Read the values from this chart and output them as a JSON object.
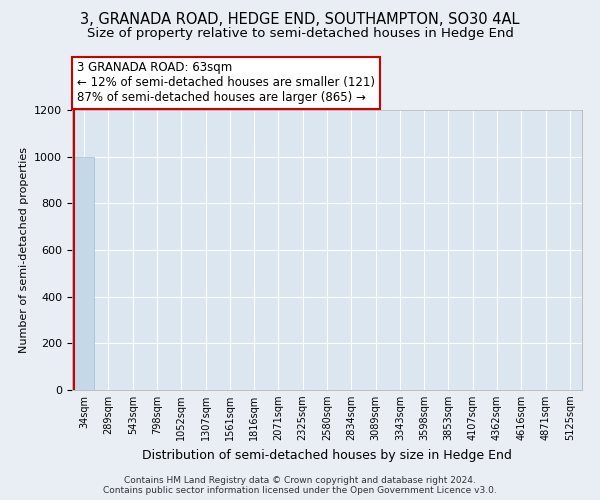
{
  "title": "3, GRANADA ROAD, HEDGE END, SOUTHAMPTON, SO30 4AL",
  "subtitle": "Size of property relative to semi-detached houses in Hedge End",
  "xlabel": "Distribution of semi-detached houses by size in Hedge End",
  "ylabel": "Number of semi-detached properties",
  "annotation_title": "3 GRANADA ROAD: 63sqm",
  "annotation_line1": "← 12% of semi-detached houses are smaller (121)",
  "annotation_line2": "87% of semi-detached houses are larger (865) →",
  "footer_line1": "Contains HM Land Registry data © Crown copyright and database right 2024.",
  "footer_line2": "Contains public sector information licensed under the Open Government Licence v3.0.",
  "categories": [
    "34sqm",
    "289sqm",
    "543sqm",
    "798sqm",
    "1052sqm",
    "1307sqm",
    "1561sqm",
    "1816sqm",
    "2071sqm",
    "2325sqm",
    "2580sqm",
    "2834sqm",
    "3089sqm",
    "3343sqm",
    "3598sqm",
    "3853sqm",
    "4107sqm",
    "4362sqm",
    "4616sqm",
    "4871sqm",
    "5125sqm"
  ],
  "values": [
    1000,
    0,
    0,
    0,
    0,
    0,
    0,
    0,
    0,
    0,
    0,
    0,
    0,
    0,
    0,
    0,
    0,
    0,
    0,
    0,
    0
  ],
  "bar_color": "#c5d8e8",
  "bar_edge_color": "#a0bcd0",
  "annotation_box_color": "#ffffff",
  "annotation_border_color": "#cc0000",
  "property_line_color": "#cc0000",
  "ylim": [
    0,
    1200
  ],
  "yticks": [
    0,
    200,
    400,
    600,
    800,
    1000,
    1200
  ],
  "background_color": "#e8eef4",
  "plot_background": "#dce6f0",
  "grid_color": "#ffffff",
  "title_fontsize": 10.5,
  "subtitle_fontsize": 9.5
}
